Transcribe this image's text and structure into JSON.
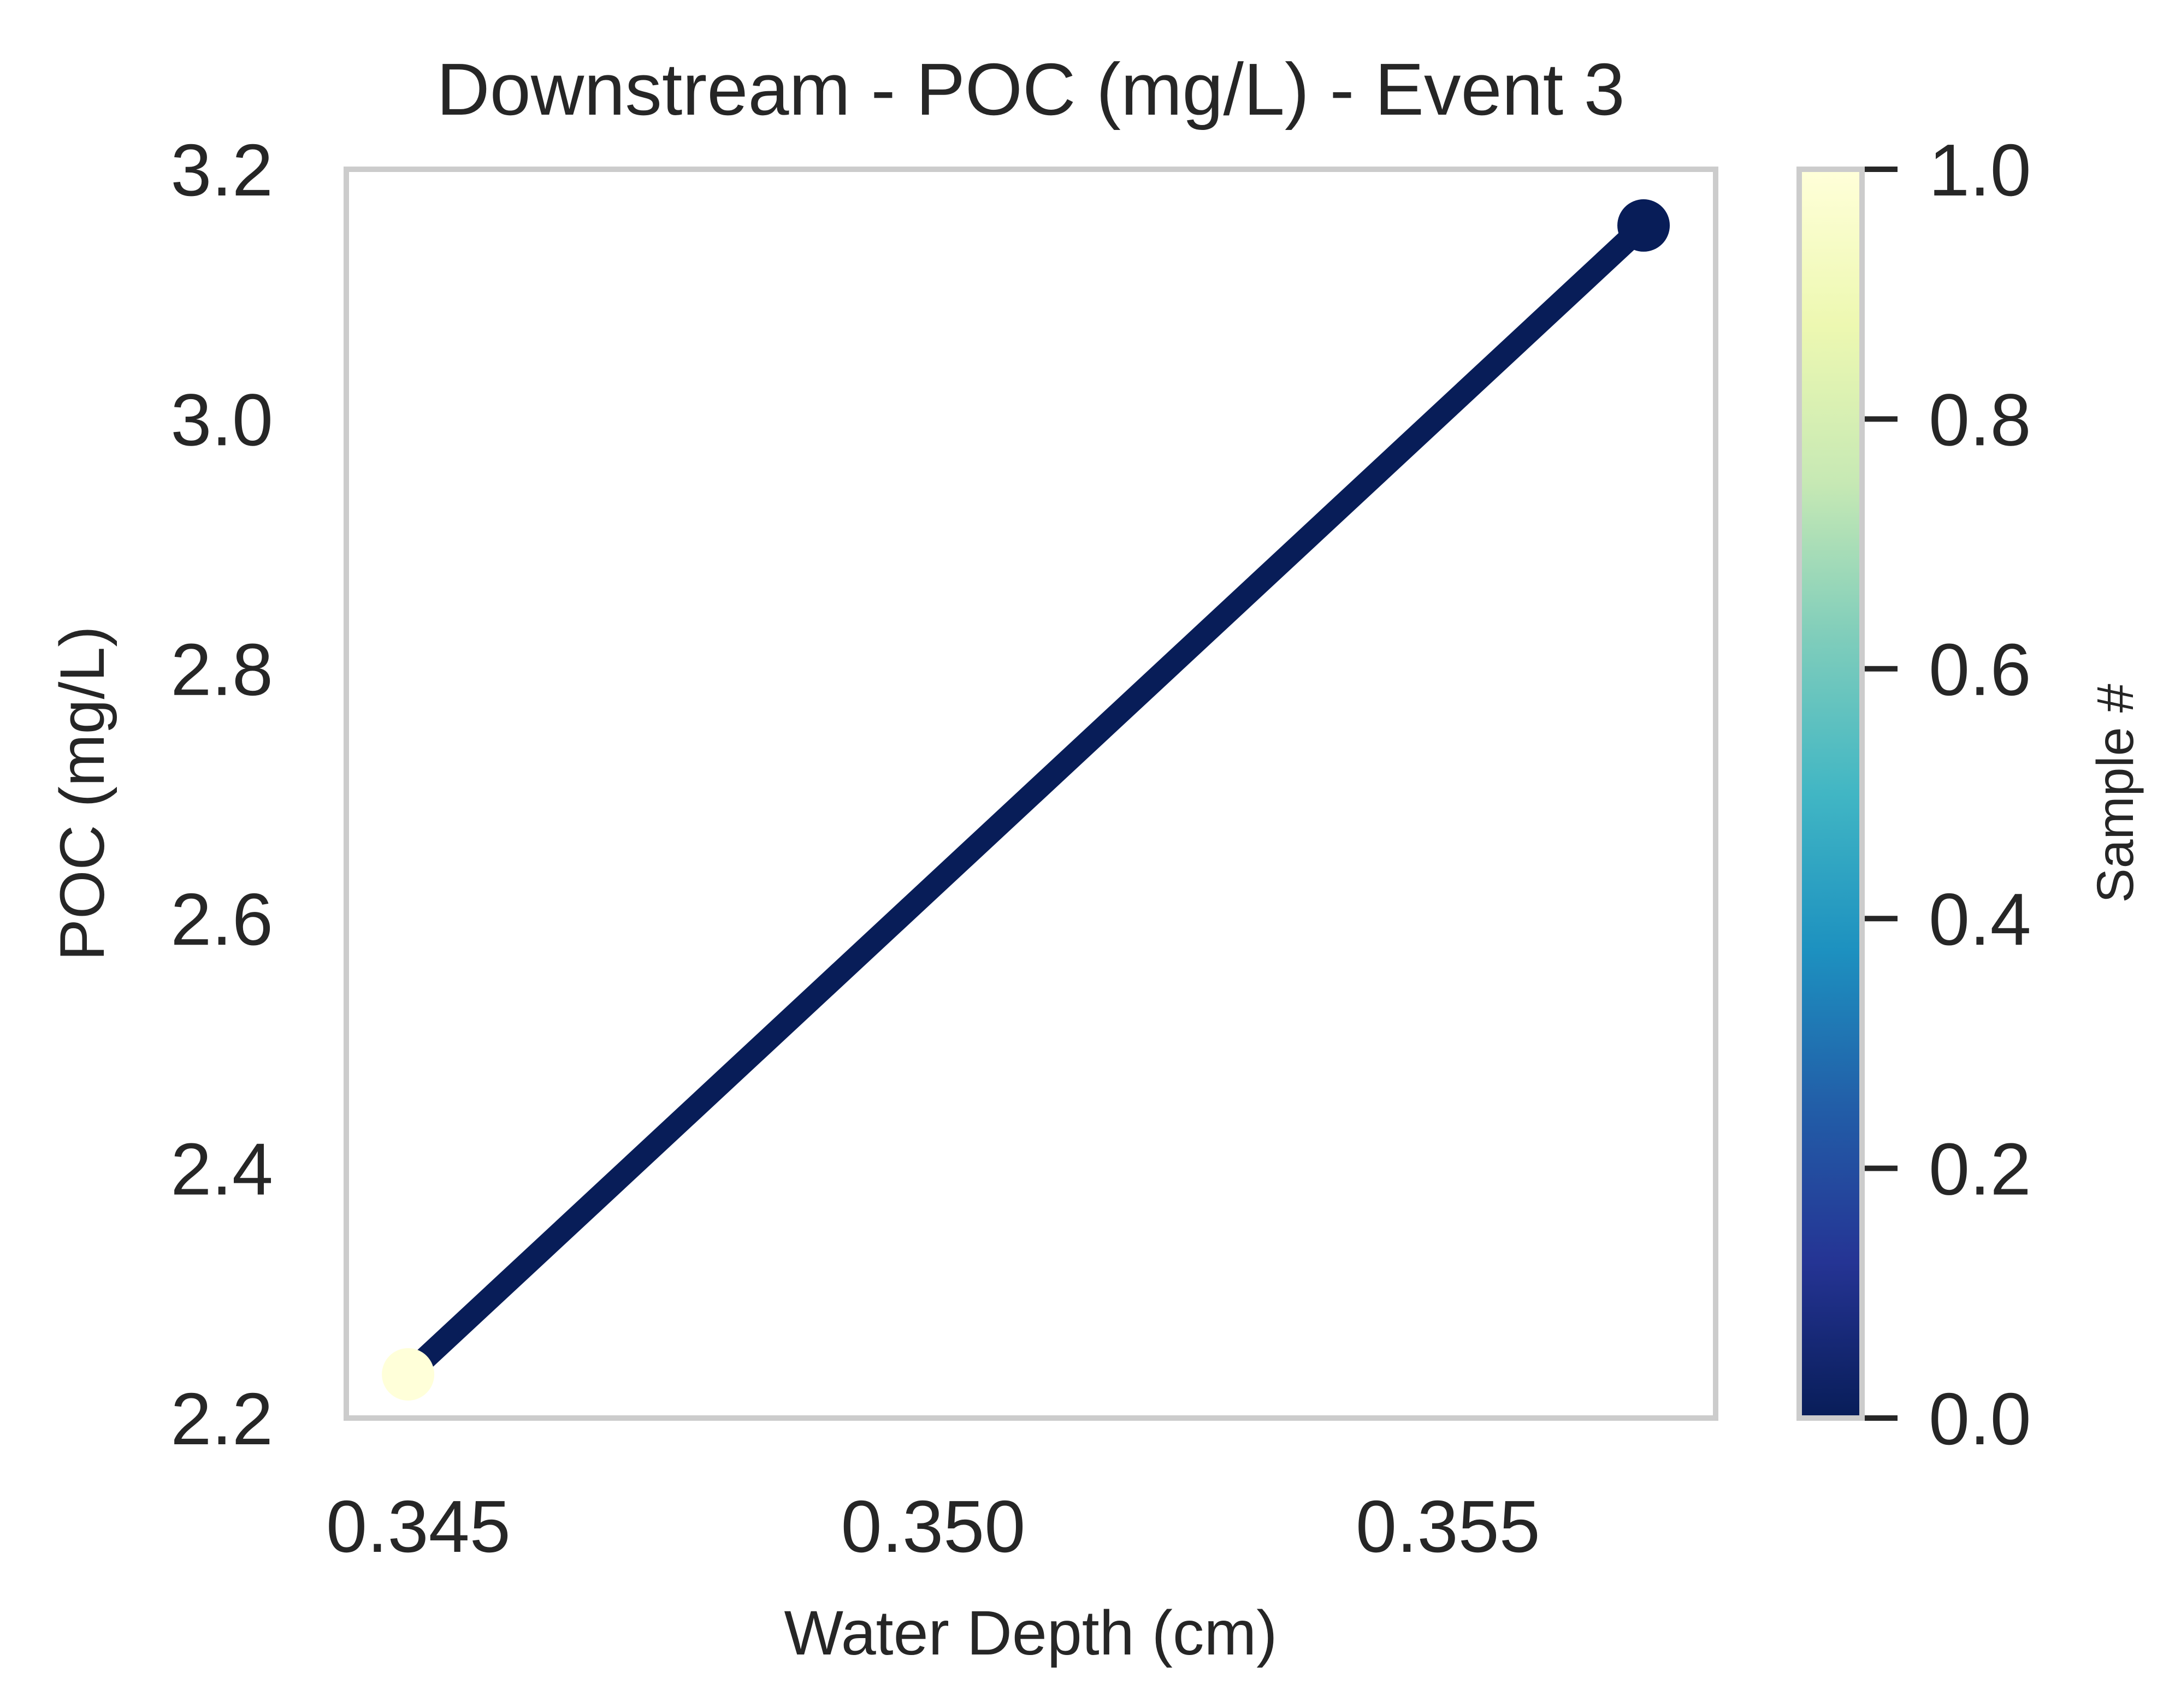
{
  "chart_data": {
    "type": "scatter",
    "title": "Downstream - POC (mg/L) - Event 3",
    "xlabel": "Water Depth (cm)",
    "ylabel": "POC (mg/L)",
    "xlim": [
      0.3443,
      0.3576
    ],
    "ylim": [
      2.2,
      3.2
    ],
    "x_ticks": [
      "0.345",
      "0.350",
      "0.355"
    ],
    "x_tick_values": [
      0.345,
      0.35,
      0.355
    ],
    "y_ticks": [
      "2.2",
      "2.4",
      "2.6",
      "2.8",
      "3.0",
      "3.2"
    ],
    "y_tick_values": [
      2.2,
      2.4,
      2.6,
      2.8,
      3.0,
      3.2
    ],
    "grid": false,
    "series": [
      {
        "points": [
          {
            "x": 0.3449,
            "y": 2.235,
            "sample": 1
          },
          {
            "x": 0.3569,
            "y": 3.155,
            "sample": 0
          }
        ],
        "line_color": "#081d58"
      }
    ],
    "colorbar": {
      "label": "Sample #",
      "colormap": "YlGnBu_r",
      "range": [
        0.0,
        1.0
      ],
      "ticks": [
        "0.0",
        "0.2",
        "0.4",
        "0.6",
        "0.8",
        "1.0"
      ],
      "tick_values": [
        0.0,
        0.2,
        0.4,
        0.6,
        0.8,
        1.0
      ],
      "colors": [
        "#081d58",
        "#253494",
        "#225ea8",
        "#1d91c0",
        "#41b6c4",
        "#7fcdbb",
        "#c7e9b4",
        "#edf8b1",
        "#ffffd9"
      ]
    }
  }
}
